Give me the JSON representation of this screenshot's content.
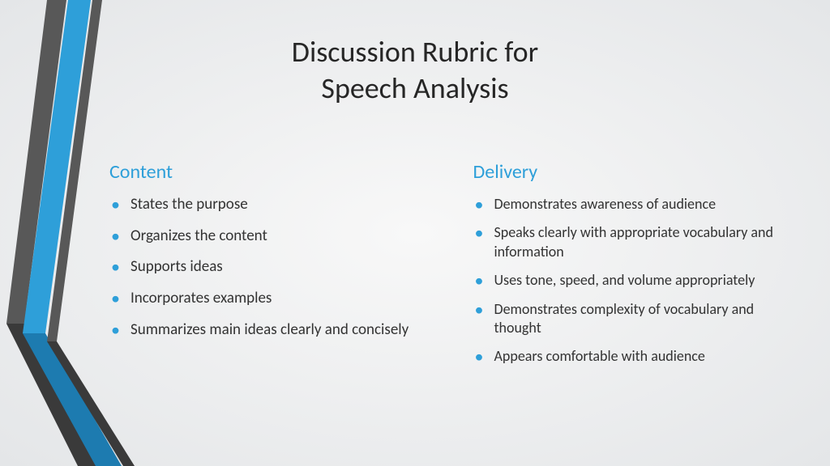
{
  "title_line1": "Discussion Rubric for",
  "title_line2": "Speech Analysis",
  "colors": {
    "accent": "#2e9fd9",
    "dark_stripe": "#585858",
    "title_text": "#262626",
    "body_text": "#333333",
    "bg_center": "#f8f8f8",
    "bg_edge": "#e4e6e8"
  },
  "columns": [
    {
      "header": "Content",
      "items": [
        "States the purpose",
        "Organizes the content",
        "Supports ideas",
        "Incorporates examples",
        "Summarizes main ideas clearly and concisely"
      ]
    },
    {
      "header": "Delivery",
      "items": [
        "Demonstrates awareness of audience",
        "Speaks clearly with appropriate vocabulary and information",
        "Uses tone, speed, and volume appropriately",
        "Demonstrates complexity of vocabulary and thought",
        "Appears comfortable with audience"
      ]
    }
  ]
}
